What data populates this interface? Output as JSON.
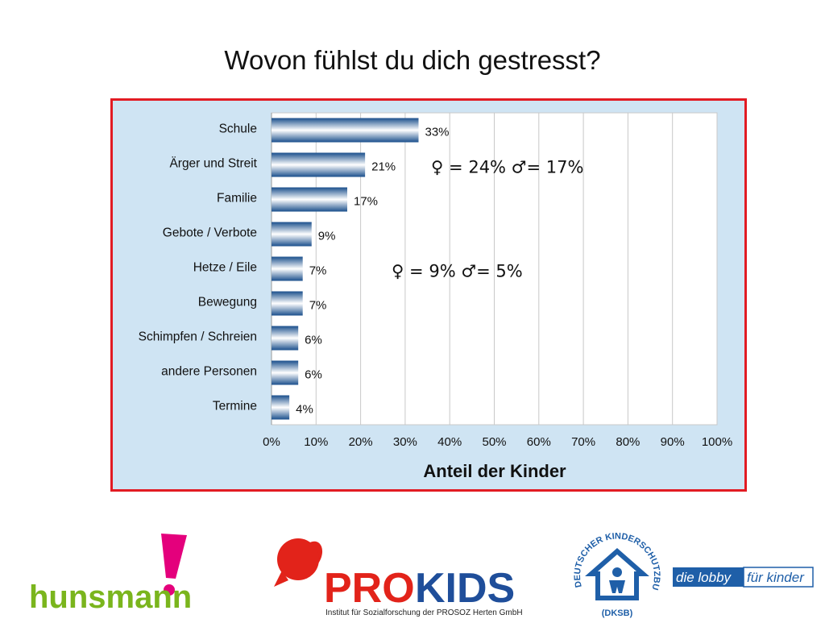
{
  "title": "Wovon fühlst du dich gestresst?",
  "chart_data": {
    "type": "bar",
    "orientation": "horizontal",
    "categories": [
      "Schule",
      "Ärger und Streit",
      "Familie",
      "Gebote / Verbote",
      "Hetze / Eile",
      "Bewegung",
      "Schimpfen / Schreien",
      "andere Personen",
      "Termine"
    ],
    "values": [
      33,
      21,
      17,
      9,
      7,
      7,
      6,
      6,
      4
    ],
    "value_labels": [
      "33%",
      "21%",
      "17%",
      "9%",
      "7%",
      "7%",
      "6%",
      "6%",
      "4%"
    ],
    "xlabel": "Anteil der Kinder",
    "xlim": [
      0,
      100
    ],
    "x_ticks": [
      "0%",
      "10%",
      "20%",
      "30%",
      "40%",
      "50%",
      "60%",
      "70%",
      "80%",
      "90%",
      "100%"
    ],
    "grid": true,
    "annotations": [
      {
        "category": "Ärger und Streit",
        "text": "♀ = 24% ♂= 17%"
      },
      {
        "category": "Hetze / Eile",
        "text": "♀ = 9% ♂= 5%"
      }
    ],
    "colors": {
      "bar_dark": "#1a4f8c",
      "bar_light": "#ffffff",
      "background": "#cfe4f3",
      "plot": "#ffffff",
      "frame": "#e21b23"
    }
  },
  "logos": {
    "hunsmann": "hunsmann",
    "prokids_pro": "PRO",
    "prokids_kids": "KIDS",
    "prokids_sub": "Institut für Sozialforschung der PROSOZ Herten GmbH",
    "dksb_ring": "DEUTSCHER KINDERSCHUTZBUND E.V.",
    "dksb_abbr": "(DKSB)",
    "lobby_a": "die lobby",
    "lobby_b": "für kinder"
  }
}
